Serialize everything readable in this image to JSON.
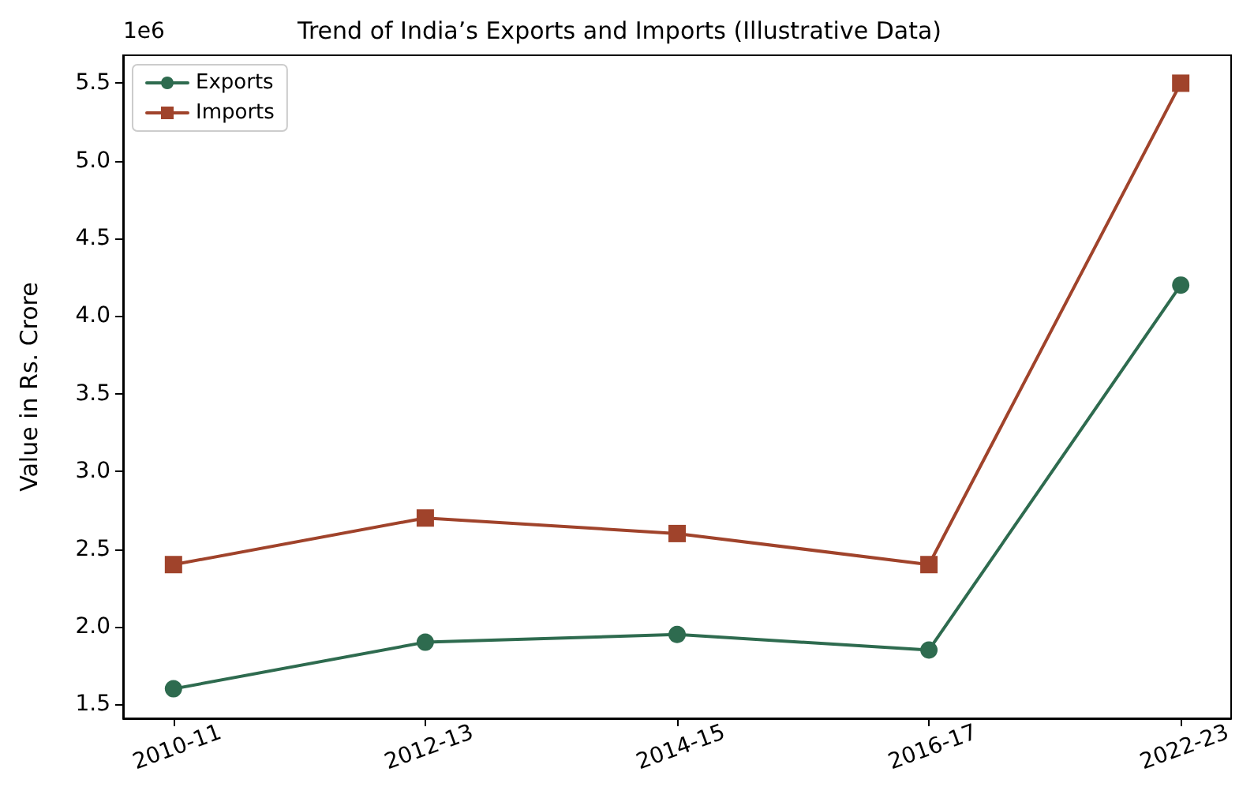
{
  "chart_data": {
    "type": "line",
    "title": "Trend of India’s Exports and Imports (Illustrative Data)",
    "ylabel": "Value in Rs. Crore",
    "annotations": [
      "1e6"
    ],
    "categories": [
      "2010-11",
      "2012-13",
      "2014-15",
      "2016-17",
      "2022-23"
    ],
    "series": [
      {
        "name": "Exports",
        "color": "#2e6b4f",
        "marker": "circle",
        "values": [
          1.6,
          1.9,
          1.95,
          1.85,
          4.2
        ]
      },
      {
        "name": "Imports",
        "color": "#a0432b",
        "marker": "square",
        "values": [
          2.4,
          2.7,
          2.6,
          2.4,
          5.5
        ]
      }
    ],
    "ylim": [
      1.41,
      5.68
    ],
    "yticks": [
      1.5,
      {
        "value": 2,
        "label": "2.0"
      },
      2.5,
      {
        "value": 3,
        "label": "3.0"
      },
      3.5,
      {
        "value": 4,
        "label": "4.0"
      },
      4.5,
      {
        "value": 5,
        "label": "5.0"
      },
      5.5
    ],
    "grid": false,
    "legend": "top left",
    "line_style": "solid"
  }
}
